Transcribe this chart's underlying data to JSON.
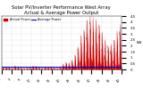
{
  "title": "Solar PV/Inverter Performance West Array\nActual & Average Power Output",
  "title_fontsize": 3.8,
  "bg_color": "#ffffff",
  "plot_bg_color": "#ffffff",
  "grid_color": "#bbbbbb",
  "fill_color": "#cc0000",
  "line_color": "#cc0000",
  "avg_line_color": "#0000cc",
  "avg_line_value": 0.22,
  "ylabel": "kW",
  "ylabel_fontsize": 3.0,
  "ytick_fontsize": 2.8,
  "xtick_fontsize": 2.5,
  "legend_text_actual": "Actual Power",
  "legend_text_avg": "Average Power",
  "ymax": 4.5,
  "ymin": 0.0,
  "yticks": [
    0,
    0.5,
    1.0,
    1.5,
    2.0,
    2.5,
    3.0,
    3.5,
    4.0,
    4.5
  ],
  "n_days": 40,
  "peaks": [
    0.15,
    0.2,
    0.18,
    0.1,
    0.25,
    0.2,
    0.15,
    0.1,
    0.12,
    0.15,
    0.3,
    0.25,
    0.15,
    0.1,
    0.18,
    0.22,
    0.2,
    0.15,
    0.1,
    0.2,
    0.4,
    0.6,
    0.5,
    0.8,
    1.2,
    1.8,
    2.5,
    3.2,
    4.0,
    4.2,
    3.8,
    4.1,
    3.5,
    2.8,
    2.2,
    1.8,
    2.0,
    2.4,
    3.0,
    3.5
  ]
}
